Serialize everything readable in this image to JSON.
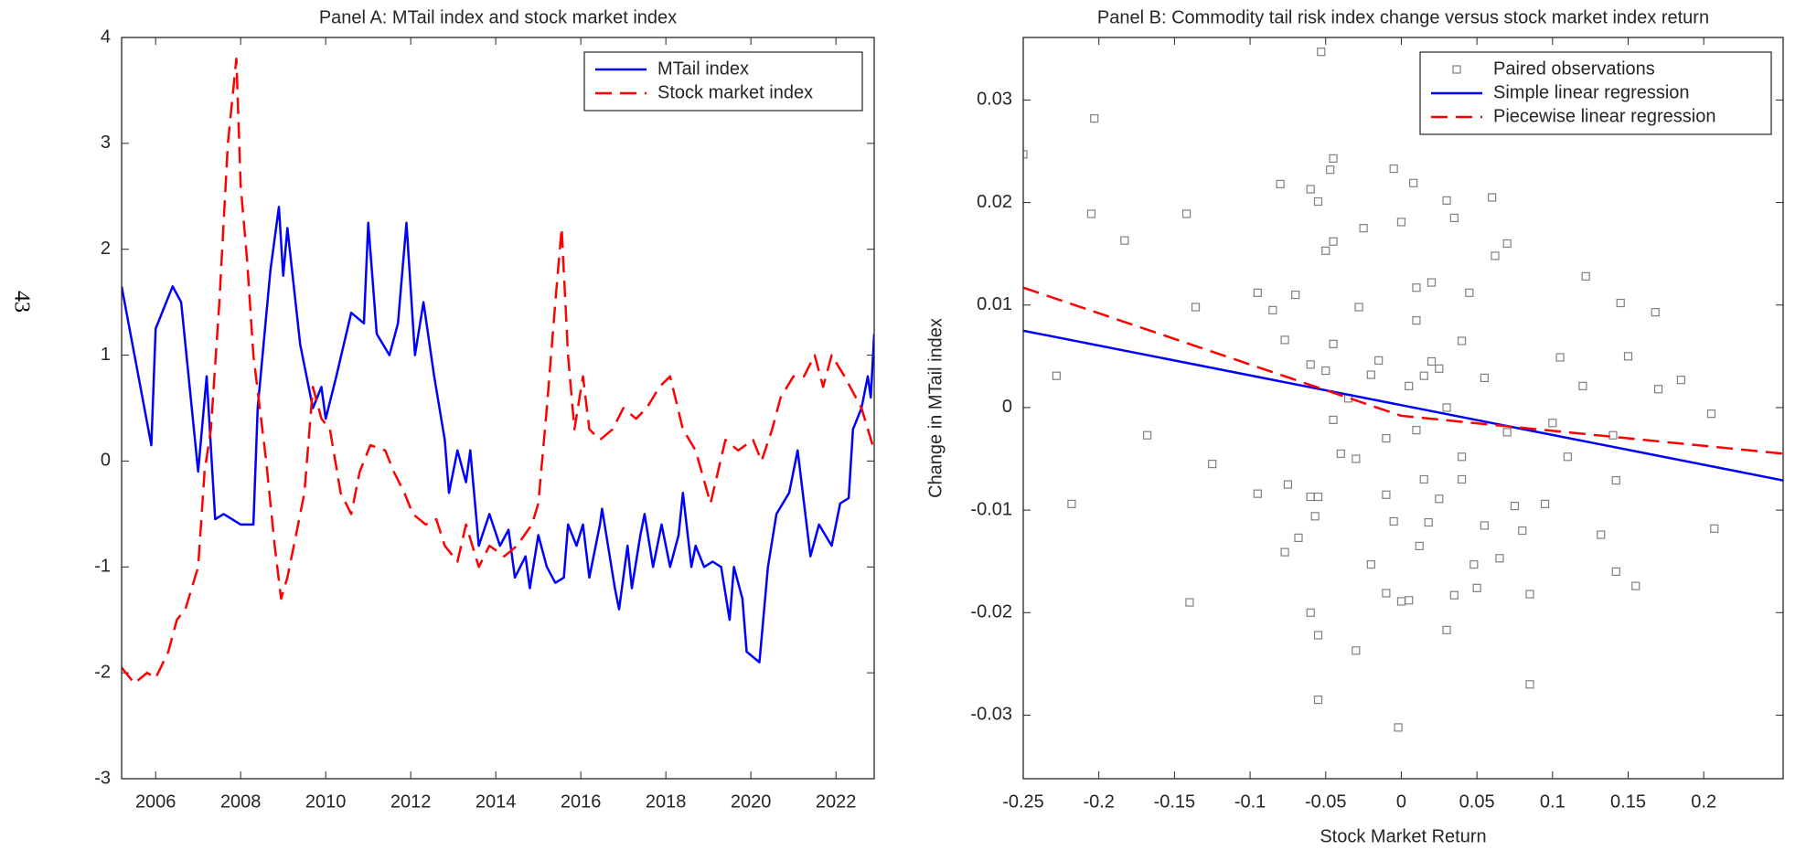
{
  "page_number": "43",
  "chart_data": [
    {
      "type": "line",
      "title": "Panel A: MTail index and stock market index",
      "xlim": [
        2005.2,
        2022.9
      ],
      "xticks": [
        2006,
        2008,
        2010,
        2012,
        2014,
        2016,
        2018,
        2020,
        2022
      ],
      "ylim": [
        -3,
        4
      ],
      "yticks": [
        -3,
        -2,
        -1,
        0,
        1,
        2,
        3,
        4
      ],
      "legend": "top-right",
      "series": [
        {
          "name": "MTail index",
          "color": "#0000ff",
          "dash": false,
          "x": [
            2005.2,
            2005.9,
            2006.0,
            2006.4,
            2006.6,
            2007.0,
            2007.2,
            2007.4,
            2007.6,
            2008.0,
            2008.3,
            2008.4,
            2008.7,
            2008.9,
            2009.0,
            2009.1,
            2009.4,
            2009.7,
            2009.9,
            2010.0,
            2010.25,
            2010.6,
            2010.9,
            2011.0,
            2011.2,
            2011.5,
            2011.7,
            2011.9,
            2012.1,
            2012.3,
            2012.55,
            2012.8,
            2012.9,
            2013.1,
            2013.3,
            2013.4,
            2013.6,
            2013.85,
            2014.1,
            2014.3,
            2014.45,
            2014.7,
            2014.8,
            2015.0,
            2015.2,
            2015.4,
            2015.6,
            2015.7,
            2015.9,
            2016.05,
            2016.2,
            2016.45,
            2016.5,
            2016.8,
            2016.9,
            2017.1,
            2017.2,
            2017.4,
            2017.5,
            2017.7,
            2017.9,
            2018.1,
            2018.3,
            2018.4,
            2018.6,
            2018.7,
            2018.9,
            2019.1,
            2019.3,
            2019.5,
            2019.6,
            2019.8,
            2019.9,
            2020.2,
            2020.4,
            2020.6,
            2020.9,
            2021.1,
            2021.25,
            2021.4,
            2021.6,
            2021.9,
            2022.1,
            2022.3,
            2022.4,
            2022.6,
            2022.75,
            2022.82,
            2022.9
          ],
          "values": [
            1.65,
            0.15,
            1.25,
            1.65,
            1.5,
            -0.1,
            0.8,
            -0.55,
            -0.5,
            -0.6,
            -0.6,
            0.5,
            1.8,
            2.4,
            1.75,
            2.2,
            1.1,
            0.5,
            0.7,
            0.4,
            0.8,
            1.4,
            1.3,
            2.25,
            1.2,
            1.0,
            1.3,
            2.25,
            1.0,
            1.5,
            0.8,
            0.2,
            -0.3,
            0.1,
            -0.2,
            0.1,
            -0.8,
            -0.5,
            -0.8,
            -0.65,
            -1.1,
            -0.9,
            -1.2,
            -0.7,
            -1.0,
            -1.15,
            -1.1,
            -0.6,
            -0.8,
            -0.6,
            -1.1,
            -0.6,
            -0.45,
            -1.2,
            -1.4,
            -0.8,
            -1.2,
            -0.7,
            -0.5,
            -1.0,
            -0.6,
            -1.0,
            -0.7,
            -0.3,
            -1.0,
            -0.8,
            -1.0,
            -0.95,
            -1.0,
            -1.5,
            -1.0,
            -1.3,
            -1.8,
            -1.9,
            -1.0,
            -0.5,
            -0.3,
            0.1,
            -0.4,
            -0.9,
            -0.6,
            -0.8,
            -0.4,
            -0.35,
            0.3,
            0.5,
            0.8,
            0.6,
            1.2
          ]
        },
        {
          "name": "Stock market index",
          "color": "#ff0000",
          "dash": true,
          "x": [
            2005.2,
            2005.5,
            2005.8,
            2006.0,
            2006.3,
            2006.5,
            2006.7,
            2007.0,
            2007.15,
            2007.3,
            2007.5,
            2007.7,
            2007.9,
            2008.0,
            2008.15,
            2008.3,
            2008.6,
            2008.8,
            2008.95,
            2009.1,
            2009.35,
            2009.5,
            2009.7,
            2009.9,
            2010.1,
            2010.35,
            2010.6,
            2010.8,
            2011.05,
            2011.4,
            2011.6,
            2011.85,
            2012.05,
            2012.35,
            2012.6,
            2012.8,
            2013.1,
            2013.3,
            2013.6,
            2013.85,
            2014.2,
            2014.5,
            2014.85,
            2015.0,
            2015.2,
            2015.4,
            2015.55,
            2015.7,
            2015.85,
            2016.05,
            2016.2,
            2016.45,
            2016.75,
            2017.0,
            2017.3,
            2017.55,
            2017.85,
            2018.1,
            2018.4,
            2018.7,
            2019.05,
            2019.4,
            2019.7,
            2020.05,
            2020.25,
            2020.5,
            2020.7,
            2021.0,
            2021.25,
            2021.5,
            2021.7,
            2021.9,
            2022.2,
            2022.6,
            2022.9
          ],
          "values": [
            -1.95,
            -2.1,
            -2.0,
            -2.05,
            -1.8,
            -1.5,
            -1.4,
            -1.0,
            -0.1,
            0.3,
            1.5,
            3.0,
            3.8,
            2.6,
            1.9,
            1.0,
            0.0,
            -0.8,
            -1.3,
            -1.1,
            -0.6,
            -0.3,
            0.7,
            0.4,
            0.3,
            -0.3,
            -0.5,
            -0.1,
            0.15,
            0.1,
            -0.1,
            -0.3,
            -0.5,
            -0.6,
            -0.55,
            -0.8,
            -0.95,
            -0.6,
            -1.0,
            -0.8,
            -0.9,
            -0.8,
            -0.6,
            -0.4,
            0.5,
            1.5,
            2.2,
            1.0,
            0.3,
            0.8,
            0.3,
            0.2,
            0.3,
            0.5,
            0.4,
            0.5,
            0.7,
            0.8,
            0.3,
            0.1,
            -0.4,
            0.2,
            0.1,
            0.2,
            0.0,
            0.3,
            0.6,
            0.8,
            0.8,
            1.0,
            0.7,
            1.0,
            0.8,
            0.5,
            0.1
          ]
        }
      ]
    },
    {
      "type": "scatter",
      "title": "Panel B: Commodity tail risk index change versus stock market index return",
      "x_label": "Stock Market Return",
      "y_label": "Change in MTail index",
      "xlim": [
        -0.25,
        0.2525
      ],
      "xticks": [
        -0.25,
        -0.2,
        -0.15,
        -0.1,
        -0.05,
        0,
        0.05,
        0.1,
        0.15,
        0.2
      ],
      "ylim": [
        -0.0362,
        0.0361
      ],
      "yticks": [
        -0.03,
        -0.02,
        -0.01,
        0,
        0.01,
        0.02,
        0.03
      ],
      "legend": "top-right",
      "series": [
        {
          "name": "Paired observations",
          "color": "#808080",
          "kind": "marker",
          "x": [
            -0.25,
            -0.203,
            -0.205,
            -0.183,
            -0.228,
            -0.218,
            -0.168,
            -0.142,
            -0.136,
            -0.125,
            -0.14,
            -0.095,
            -0.095,
            -0.085,
            -0.08,
            -0.077,
            -0.075,
            -0.077,
            -0.07,
            -0.06,
            -0.06,
            -0.055,
            -0.053,
            -0.05,
            -0.045,
            -0.047,
            -0.045,
            -0.05,
            -0.045,
            -0.055,
            -0.06,
            -0.057,
            -0.06,
            -0.055,
            -0.055,
            -0.068,
            -0.045,
            -0.04,
            -0.035,
            -0.028,
            -0.025,
            -0.03,
            -0.02,
            -0.015,
            -0.01,
            -0.01,
            -0.005,
            0.0,
            -0.005,
            0.0,
            -0.002,
            0.005,
            0.005,
            0.008,
            0.01,
            0.01,
            0.012,
            0.015,
            0.018,
            0.02,
            0.025,
            0.025,
            0.03,
            0.03,
            0.035,
            0.035,
            0.04,
            0.04,
            0.045,
            0.048,
            0.05,
            0.055,
            0.055,
            0.06,
            0.062,
            0.065,
            0.07,
            0.07,
            0.075,
            0.08,
            0.085,
            0.085,
            0.095,
            0.1,
            0.105,
            0.11,
            0.122,
            0.12,
            0.132,
            0.14,
            0.145,
            0.142,
            0.142,
            0.15,
            0.155,
            0.168,
            0.17,
            0.185,
            0.205,
            0.207,
            0.01,
            0.02,
            -0.02,
            0.03,
            -0.01,
            0.04,
            -0.03,
            0.015
          ],
          "values": [
            0.0247,
            0.0282,
            0.0189,
            0.0163,
            0.0031,
            -0.0094,
            -0.0027,
            0.0189,
            0.0098,
            -0.0055,
            -0.019,
            0.0112,
            -0.0084,
            0.0095,
            0.0218,
            0.0066,
            -0.0075,
            -0.0141,
            0.011,
            0.0042,
            0.0213,
            0.0201,
            0.0347,
            0.0153,
            0.0162,
            0.0232,
            0.0243,
            0.0036,
            0.0062,
            -0.0087,
            -0.0087,
            -0.0106,
            -0.02,
            -0.0222,
            -0.0285,
            -0.0127,
            -0.0012,
            -0.0045,
            0.0009,
            0.0098,
            0.0175,
            -0.0237,
            -0.0153,
            0.0046,
            -0.0085,
            -0.0181,
            0.0233,
            0.0181,
            -0.0111,
            -0.0189,
            -0.0312,
            0.0021,
            -0.0188,
            0.0219,
            0.0117,
            -0.0022,
            -0.0135,
            0.0031,
            -0.0112,
            0.0122,
            0.0038,
            -0.0089,
            0.0202,
            -0.0217,
            0.0185,
            -0.0183,
            0.0065,
            -0.0048,
            0.0112,
            -0.0153,
            -0.0176,
            0.0029,
            -0.0115,
            0.0205,
            0.0148,
            -0.0147,
            0.016,
            -0.0024,
            -0.0096,
            -0.012,
            -0.027,
            -0.0182,
            -0.0094,
            -0.0015,
            0.0049,
            -0.0048,
            0.0128,
            0.0021,
            -0.0124,
            -0.0027,
            0.0102,
            -0.0071,
            -0.016,
            0.005,
            -0.0174,
            0.0093,
            0.0018,
            0.0027,
            -0.0006,
            -0.0118,
            0.0085,
            0.0045,
            0.0032,
            0.0,
            -0.003,
            -0.007,
            -0.005,
            -0.007
          ]
        },
        {
          "name": "Simple linear regression",
          "color": "#0000ff",
          "kind": "line",
          "dash": false,
          "x": [
            -0.25,
            0.2525
          ],
          "values": [
            0.0075,
            -0.0071
          ]
        },
        {
          "name": "Piecewise linear regression",
          "color": "#ff0000",
          "kind": "line",
          "dash": true,
          "x": [
            -0.25,
            0,
            0.2525
          ],
          "values": [
            0.0117,
            -0.0008,
            -0.0045
          ]
        }
      ]
    }
  ]
}
